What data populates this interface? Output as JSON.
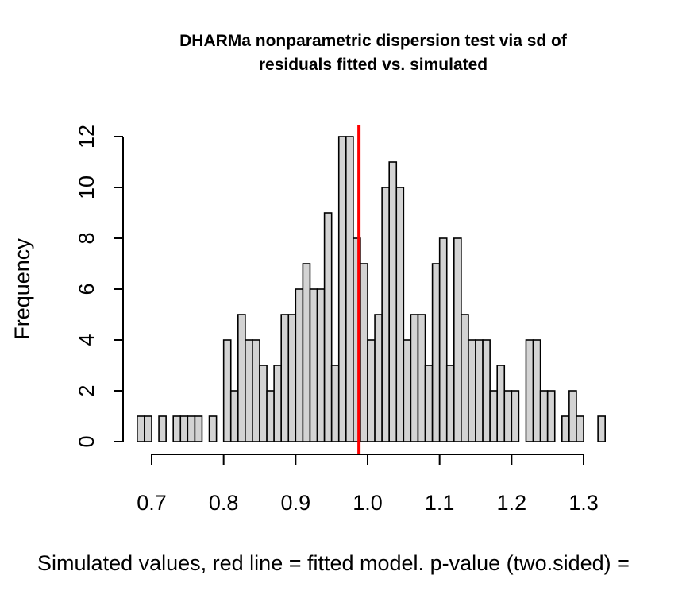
{
  "chart_data": {
    "type": "bar",
    "title_line1": "DHARMa nonparametric dispersion test via sd of",
    "title_line2": "residuals fitted vs. simulated",
    "xlabel": "Simulated values, red line = fitted model. p-value (two.sided) =",
    "ylabel": "Frequency",
    "bin_start": 0.68,
    "bin_width": 0.01,
    "values": [
      1,
      1,
      0,
      1,
      0,
      1,
      1,
      1,
      1,
      0,
      1,
      0,
      4,
      2,
      5,
      4,
      4,
      3,
      2,
      3,
      5,
      5,
      6,
      7,
      6,
      6,
      9,
      3,
      12,
      12,
      8,
      7,
      4,
      5,
      10,
      11,
      10,
      4,
      5,
      5,
      3,
      7,
      8,
      3,
      8,
      5,
      4,
      4,
      4,
      2,
      3,
      2,
      2,
      0,
      4,
      4,
      2,
      2,
      0,
      1,
      2,
      1,
      0,
      0,
      1
    ],
    "observed": 0.988,
    "xlim": [
      0.7,
      1.3
    ],
    "ylim": [
      0,
      12
    ],
    "x_ticks": [
      "0.7",
      "0.8",
      "0.9",
      "1.0",
      "1.1",
      "1.2",
      "1.3"
    ],
    "y_ticks": [
      "0",
      "2",
      "4",
      "6",
      "8",
      "10",
      "12"
    ],
    "bar_color": "#d3d3d3",
    "bar_stroke": "#000000",
    "line_color": "#ff0000"
  }
}
